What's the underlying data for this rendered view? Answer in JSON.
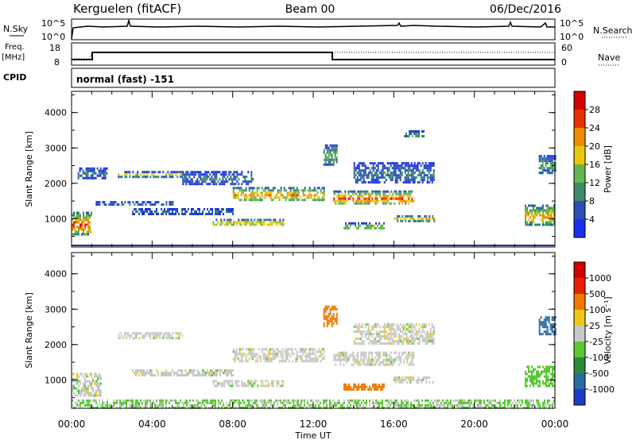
{
  "header": {
    "station": "Kerguelen (fitACF)",
    "beam": "Beam 00",
    "date": "06/Dec/2016"
  },
  "panels": {
    "nsky": {
      "label": "N.Sky",
      "ticks": [
        "10^5",
        "10^0"
      ],
      "right_ticks": [
        "10^5",
        "10^0"
      ],
      "right_label": "N.Search"
    },
    "freq": {
      "label_line1": "Freq.",
      "label_line2": "[MHz]",
      "ticks": [
        "18",
        "8"
      ],
      "right_ticks": [
        "60",
        "0"
      ],
      "right_label": "Nave"
    },
    "cpid": {
      "label": "CPID",
      "text": "normal (fast) -151"
    }
  },
  "time_axis": {
    "title": "Time UT",
    "ticks": [
      "00:00",
      "04:00",
      "08:00",
      "12:00",
      "16:00",
      "20:00",
      "00:00"
    ]
  },
  "colors": {
    "line": "#000000",
    "baseline": "#1a3a8a"
  },
  "chart_data": [
    {
      "type": "heatmap",
      "parameter": "power",
      "ylabel": "Slant Range [km]",
      "yticks": [
        "4000",
        "3000",
        "2000",
        "1000"
      ],
      "ylim": [
        200,
        4600
      ],
      "xlim_hours": [
        0,
        24
      ],
      "colorbar": {
        "label": "Power [dB]",
        "ticks": [
          "28",
          "24",
          "20",
          "16",
          "12",
          "8",
          "4"
        ],
        "colors": [
          "#1a2ef0",
          "#2a4fb5",
          "#3c8a6a",
          "#64b450",
          "#e8c80a",
          "#f08a00",
          "#e83200",
          "#d40000"
        ]
      },
      "echo_regions": [
        {
          "t0": 0.0,
          "t1": 1.0,
          "r0": 550,
          "r1": 1200,
          "level": 24
        },
        {
          "t0": 0.3,
          "t1": 1.8,
          "r0": 2150,
          "r1": 2450,
          "level": 8
        },
        {
          "t0": 2.3,
          "t1": 5.5,
          "r0": 2200,
          "r1": 2350,
          "level": 16
        },
        {
          "t0": 1.2,
          "t1": 5.0,
          "r0": 1400,
          "r1": 1500,
          "level": 8
        },
        {
          "t0": 3.0,
          "t1": 8.0,
          "r0": 1150,
          "r1": 1300,
          "level": 8
        },
        {
          "t0": 5.5,
          "t1": 9.0,
          "r0": 2000,
          "r1": 2350,
          "level": 8
        },
        {
          "t0": 7.0,
          "t1": 10.5,
          "r0": 800,
          "r1": 1000,
          "level": 20
        },
        {
          "t0": 8.0,
          "t1": 12.5,
          "r0": 1500,
          "r1": 1900,
          "level": 20
        },
        {
          "t0": 12.5,
          "t1": 13.2,
          "r0": 2500,
          "r1": 3100,
          "level": 12
        },
        {
          "t0": 13.0,
          "t1": 17.0,
          "r0": 1400,
          "r1": 1800,
          "level": 24
        },
        {
          "t0": 14.0,
          "t1": 18.0,
          "r0": 2000,
          "r1": 2600,
          "level": 8
        },
        {
          "t0": 16.0,
          "t1": 18.0,
          "r0": 950,
          "r1": 1100,
          "level": 20
        },
        {
          "t0": 13.5,
          "t1": 15.5,
          "r0": 700,
          "r1": 900,
          "level": 16
        },
        {
          "t0": 22.5,
          "t1": 24.0,
          "r0": 800,
          "r1": 1400,
          "level": 20
        },
        {
          "t0": 23.2,
          "t1": 24.0,
          "r0": 2300,
          "r1": 2800,
          "level": 12
        },
        {
          "t0": 16.5,
          "t1": 17.5,
          "r0": 3300,
          "r1": 3500,
          "level": 12
        }
      ]
    },
    {
      "type": "heatmap",
      "parameter": "velocity",
      "ylabel": "Slant Range [km]",
      "yticks": [
        "4000",
        "3000",
        "2000",
        "1000"
      ],
      "ylim": [
        200,
        4600
      ],
      "xlim_hours": [
        0,
        24
      ],
      "colorbar": {
        "label": "Velocity [m s⁻¹]",
        "ticks": [
          "1000",
          "500",
          "100",
          "25",
          "-25",
          "-100",
          "-500",
          "-1000"
        ],
        "colors": [
          "#1c3cc8",
          "#2a6aa0",
          "#2e8a3a",
          "#5ac832",
          "#c8c8c8",
          "#f0c814",
          "#f07800",
          "#e82000",
          "#d40000"
        ]
      },
      "echo_regions": [
        {
          "t0": 0.0,
          "t1": 1.5,
          "r0": 550,
          "r1": 1200,
          "level": 0
        },
        {
          "t0": 2.3,
          "t1": 5.5,
          "r0": 2200,
          "r1": 2350,
          "level": 0
        },
        {
          "t0": 3.0,
          "t1": 8.0,
          "r0": 1150,
          "r1": 1300,
          "level": 0
        },
        {
          "t0": 7.0,
          "t1": 10.5,
          "r0": 800,
          "r1": 1000,
          "level": 0
        },
        {
          "t0": 8.0,
          "t1": 12.5,
          "r0": 1500,
          "r1": 1900,
          "level": 0
        },
        {
          "t0": 12.5,
          "t1": 13.2,
          "r0": 2500,
          "r1": 3100,
          "level": -300
        },
        {
          "t0": 13.0,
          "t1": 17.0,
          "r0": 1400,
          "r1": 1800,
          "level": 0
        },
        {
          "t0": 14.0,
          "t1": 18.0,
          "r0": 2000,
          "r1": 2600,
          "level": 0
        },
        {
          "t0": 13.5,
          "t1": 15.5,
          "r0": 700,
          "r1": 900,
          "level": -300
        },
        {
          "t0": 16.0,
          "t1": 18.0,
          "r0": 950,
          "r1": 1100,
          "level": 0
        },
        {
          "t0": 22.5,
          "t1": 24.0,
          "r0": 800,
          "r1": 1400,
          "level": 60
        },
        {
          "t0": 23.2,
          "t1": 24.0,
          "r0": 2300,
          "r1": 2800,
          "level": 700
        },
        {
          "t0": 0.0,
          "t1": 24.0,
          "r0": 200,
          "r1": 450,
          "level": 30
        }
      ]
    }
  ]
}
